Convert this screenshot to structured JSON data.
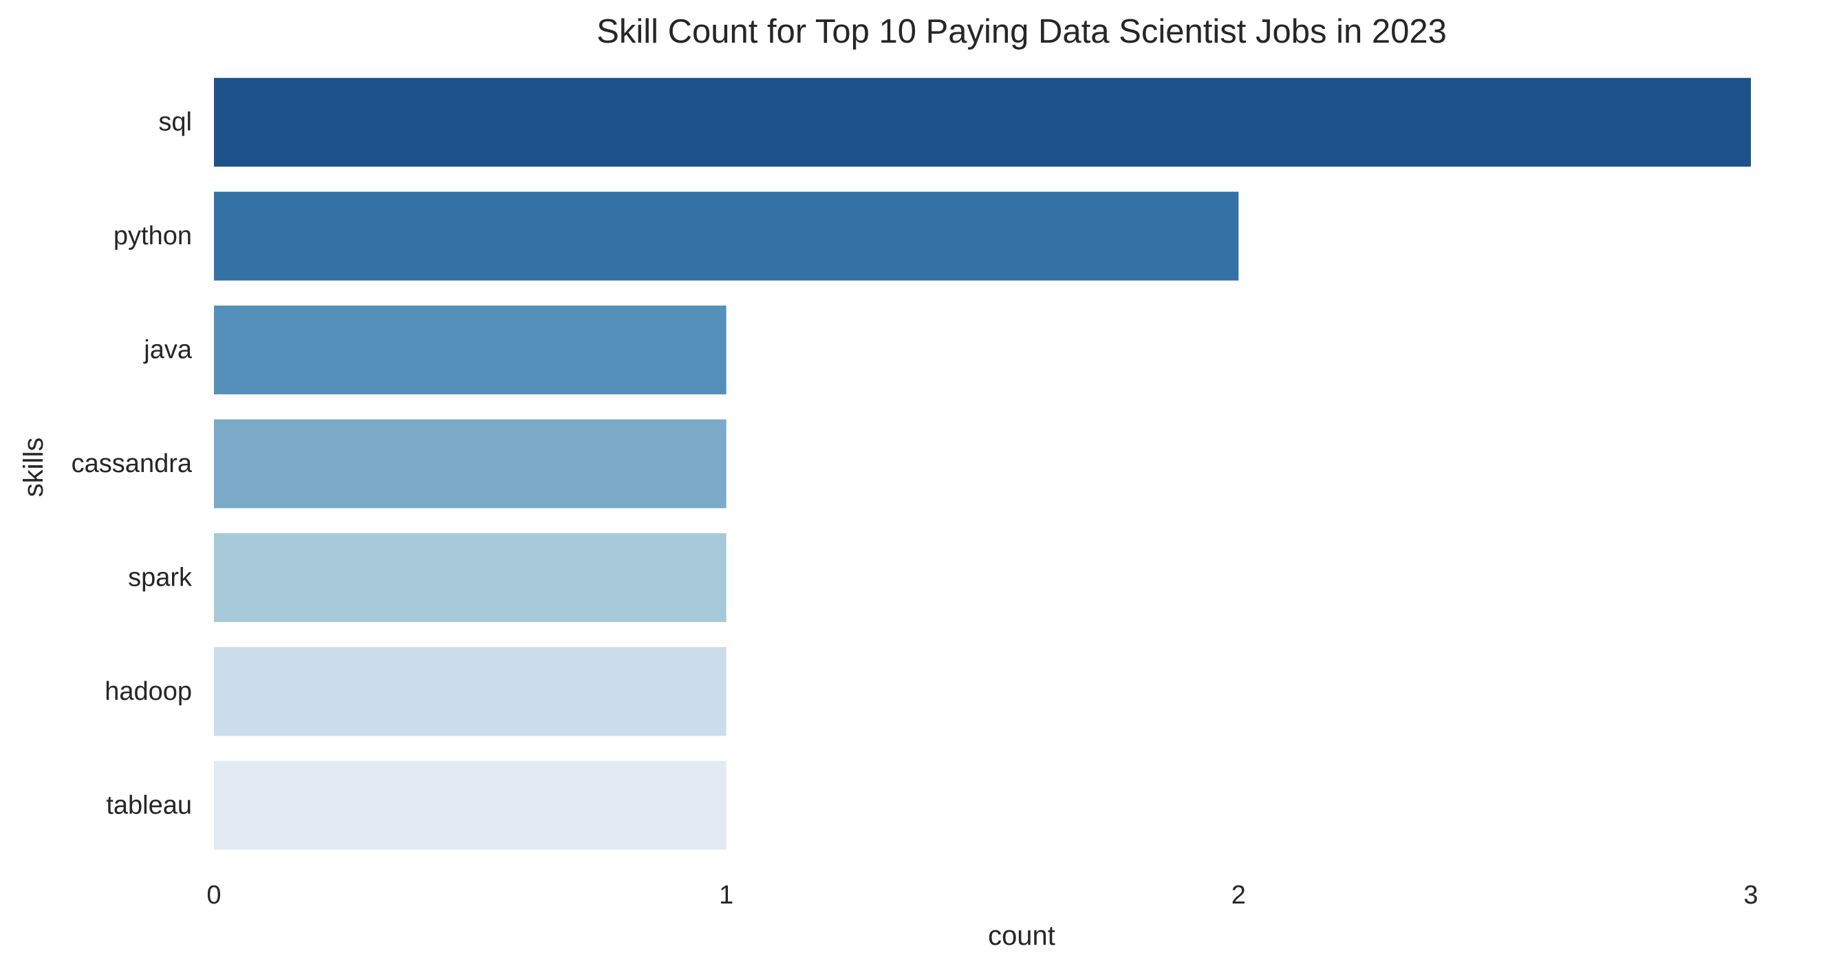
{
  "chart_data": {
    "type": "bar",
    "orientation": "horizontal",
    "title": "Skill Count for Top 10 Paying Data Scientist Jobs in 2023",
    "xlabel": "count",
    "ylabel": "skills",
    "categories": [
      "sql",
      "python",
      "java",
      "cassandra",
      "spark",
      "hadoop",
      "tableau"
    ],
    "values": [
      3,
      2,
      1,
      1,
      1,
      1,
      1
    ],
    "xlim": [
      0,
      3
    ],
    "xticks": [
      "0",
      "1",
      "2",
      "3"
    ],
    "grid": false,
    "legend": "none",
    "colors": [
      "#1d528b",
      "#3471a5",
      "#5490ba",
      "#7aaac8",
      "#a7c8d8",
      "#cbdcea",
      "#e2eaf4"
    ]
  }
}
